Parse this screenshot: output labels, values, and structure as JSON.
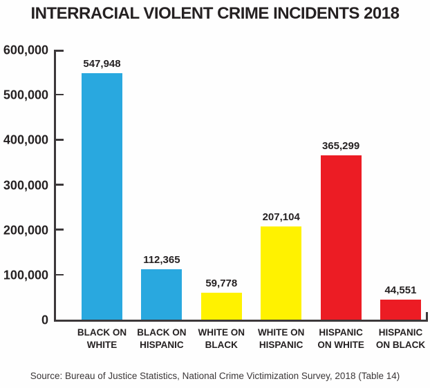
{
  "title": "INTERRACIAL VIOLENT CRIME INCIDENTS 2018",
  "source": "Source: Bureau of Justice Statistics, National Crime Victimization Survey, 2018 (Table 14)",
  "colors": {
    "blue": "#29A8DF",
    "yellow": "#FFF200",
    "red": "#EC1C24",
    "axis": "#3c383a",
    "text": "#252122",
    "background": "#fefefe"
  },
  "chart_data": {
    "type": "bar",
    "title": "INTERRACIAL VIOLENT CRIME INCIDENTS 2018",
    "categories": [
      "BLACK ON WHITE",
      "BLACK ON HISPANIC",
      "WHITE ON BLACK",
      "WHITE ON HISPANIC",
      "HISPANIC ON WHITE",
      "HISPANIC ON BLACK"
    ],
    "category_lines": [
      [
        "BLACK ON",
        "WHITE"
      ],
      [
        "BLACK ON",
        "HISPANIC"
      ],
      [
        "WHITE ON",
        "BLACK"
      ],
      [
        "WHITE ON",
        "HISPANIC"
      ],
      [
        "HISPANIC",
        "ON WHITE"
      ],
      [
        "HISPANIC",
        "ON BLACK"
      ]
    ],
    "values": [
      547948,
      112365,
      59778,
      207104,
      365299,
      44551
    ],
    "value_labels": [
      "547,948",
      "112,365",
      "59,778",
      "207,104",
      "365,299",
      "44,551"
    ],
    "bar_colors": [
      "#29A8DF",
      "#29A8DF",
      "#FFF200",
      "#FFF200",
      "#EC1C24",
      "#EC1C24"
    ],
    "xlabel": "",
    "ylabel": "",
    "ylim": [
      0,
      600000
    ],
    "yticks": {
      "values": [
        0,
        100000,
        200000,
        300000,
        400000,
        500000,
        600000
      ],
      "labels": [
        "0",
        "100,000",
        "200,000",
        "300,000",
        "400,000",
        "500,000",
        "600,000"
      ]
    },
    "grid": false,
    "legend": "none",
    "data_labels": true
  }
}
